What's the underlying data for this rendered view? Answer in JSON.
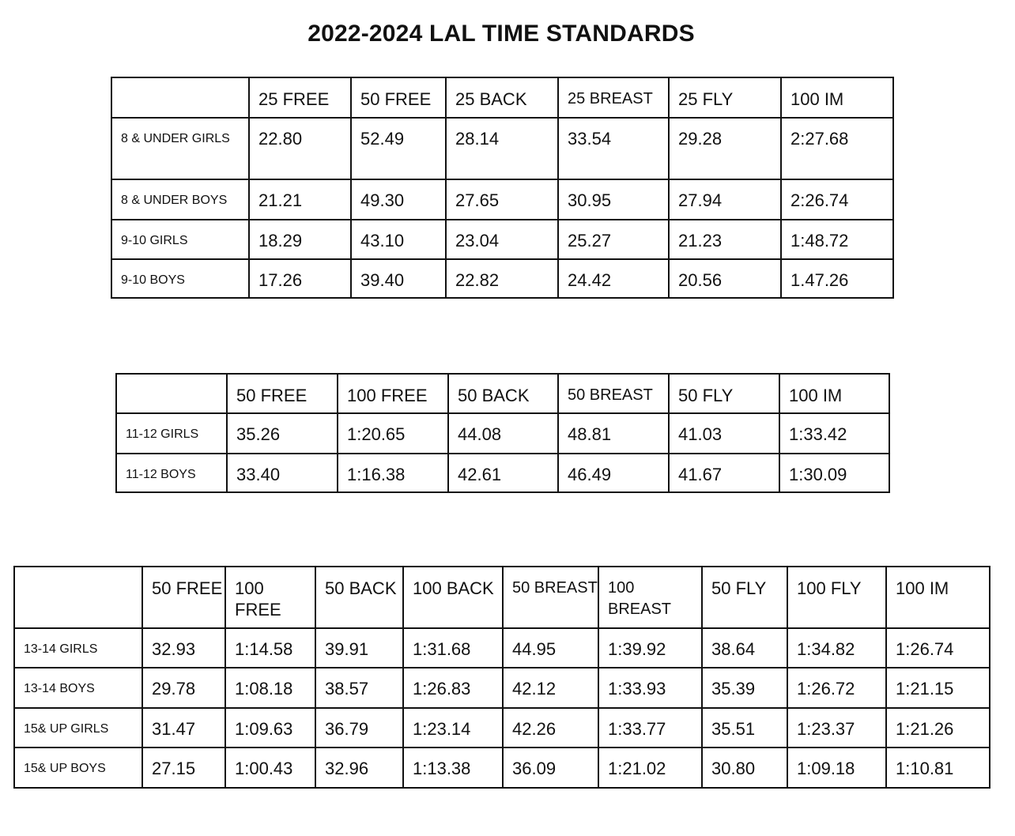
{
  "title": "2022-2024 LAL TIME STANDARDS",
  "tables": [
    {
      "headers": [
        "",
        "25 FREE",
        "50 FREE",
        "25 BACK",
        "25 BREAST",
        "25 FLY",
        "100 IM"
      ],
      "rows": [
        {
          "label": "8 & UNDER GIRLS",
          "values": [
            "22.80",
            "52.49",
            "28.14",
            "33.54",
            "29.28",
            "2:27.68"
          ]
        },
        {
          "label": "8 & UNDER BOYS",
          "values": [
            "21.21",
            "49.30",
            "27.65",
            "30.95",
            "27.94",
            "2:26.74"
          ]
        },
        {
          "label": "9-10 GIRLS",
          "values": [
            "18.29",
            "43.10",
            "23.04",
            "25.27",
            "21.23",
            "1:48.72"
          ]
        },
        {
          "label": "9-10 BOYS",
          "values": [
            "17.26",
            "39.40",
            "22.82",
            "24.42",
            "20.56",
            "1.47.26"
          ]
        }
      ]
    },
    {
      "headers": [
        "",
        "50 FREE",
        "100 FREE",
        "50 BACK",
        "50 BREAST",
        "50 FLY",
        "100 IM"
      ],
      "rows": [
        {
          "label": "11-12 GIRLS",
          "values": [
            "35.26",
            "1:20.65",
            "44.08",
            "48.81",
            "41.03",
            "1:33.42"
          ]
        },
        {
          "label": "11-12 BOYS",
          "values": [
            "33.40",
            "1:16.38",
            "42.61",
            "46.49",
            "41.67",
            "1:30.09"
          ]
        }
      ]
    },
    {
      "headers": [
        "",
        "50 FREE",
        "100 FREE",
        "50 BACK",
        "100 BACK",
        "50 BREAST",
        "100 BREAST",
        "50 FLY",
        "100 FLY",
        "100 IM"
      ],
      "rows": [
        {
          "label": "13-14 GIRLS",
          "values": [
            "32.93",
            "1:14.58",
            "39.91",
            "1:31.68",
            "44.95",
            "1:39.92",
            "38.64",
            "1:34.82",
            "1:26.74"
          ]
        },
        {
          "label": "13-14 BOYS",
          "values": [
            "29.78",
            "1:08.18",
            "38.57",
            "1:26.83",
            "42.12",
            "1:33.93",
            "35.39",
            "1:26.72",
            "1:21.15"
          ]
        },
        {
          "label": "15& UP GIRLS",
          "values": [
            "31.47",
            "1:09.63",
            "36.79",
            "1:23.14",
            "42.26",
            "1:33.77",
            "35.51",
            "1:23.37",
            "1:21.26"
          ]
        },
        {
          "label": "15& UP BOYS",
          "values": [
            "27.15",
            "1:00.43",
            "32.96",
            "1:13.38",
            "36.09",
            "1:21.02",
            "30.80",
            "1:09.18",
            "1:10.81"
          ]
        }
      ]
    }
  ]
}
